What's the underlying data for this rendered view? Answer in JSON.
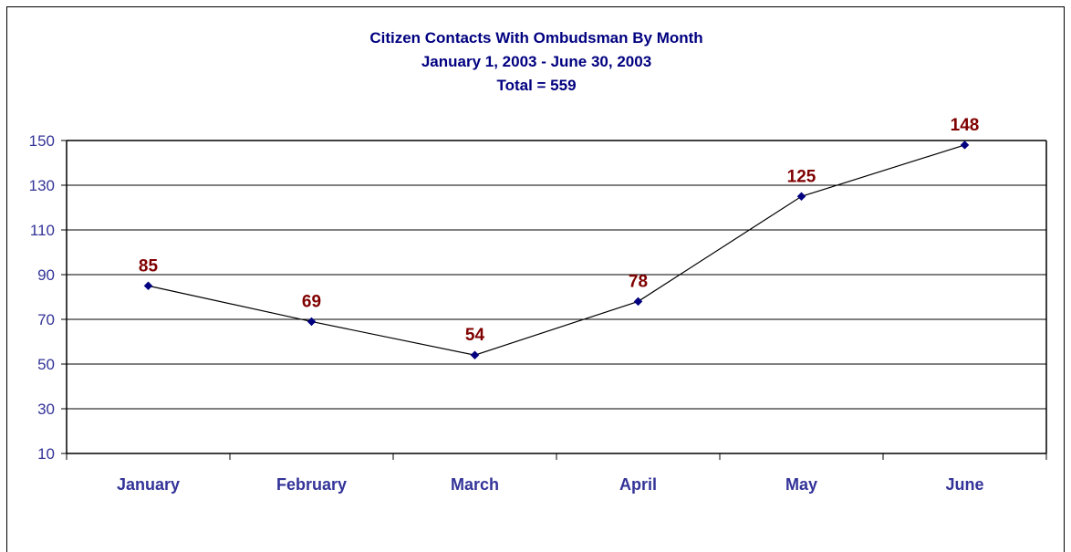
{
  "chart_data": {
    "type": "line",
    "title": "Citizen Contacts With Ombudsman By Month",
    "subtitle": "January 1, 2003 - June 30, 2003",
    "subtitle2": "Total = 559",
    "xlabel": "",
    "ylabel": "",
    "categories": [
      "January",
      "February",
      "March",
      "April",
      "May",
      "June"
    ],
    "values": [
      85,
      69,
      54,
      78,
      125,
      148
    ],
    "ylim": [
      10,
      150
    ],
    "yticks": [
      "150",
      "130",
      "110",
      "90",
      "70",
      "50",
      "30",
      "10"
    ],
    "grid": true,
    "legend": "none",
    "colors": {
      "line": "#000000",
      "marker": "#000080",
      "value_label": "#800000",
      "axis_text": "#333399",
      "title": "#000080"
    }
  }
}
